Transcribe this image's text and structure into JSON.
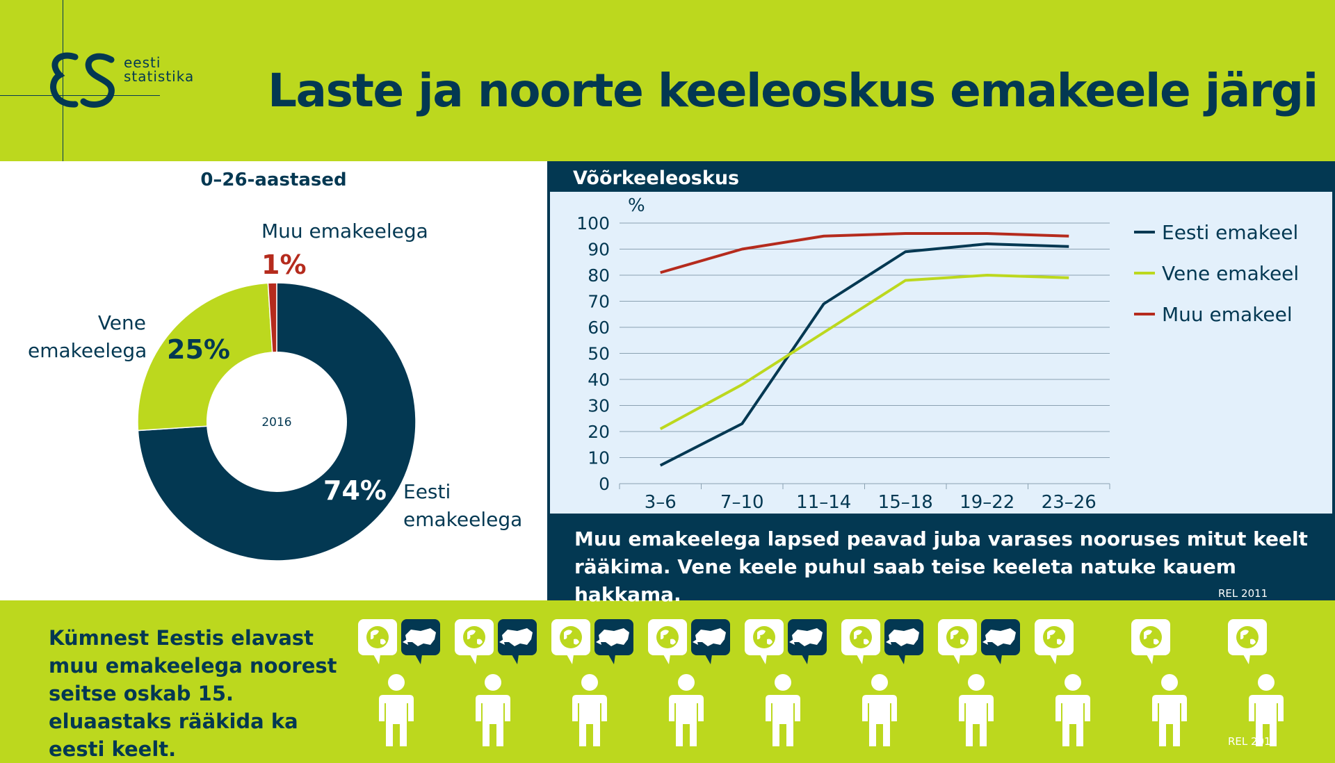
{
  "header": {
    "logo_mark": "ES",
    "logo_line1": "eesti",
    "logo_line2": "statistika",
    "title": "Laste ja noorte keeleoskus emakeele järgi"
  },
  "pie": {
    "heading": "0–26-aastased",
    "center_label": "2016",
    "slices": [
      {
        "label_lines": [
          "Eesti",
          "emakeelega"
        ],
        "pct": "74%",
        "value": 74,
        "color": "#033852"
      },
      {
        "label_lines": [
          "Vene",
          "emakeelega"
        ],
        "pct": "25%",
        "value": 25,
        "color": "#bcd81e"
      },
      {
        "label_lines": [
          "Muu emakeelega"
        ],
        "pct": "1%",
        "value": 1,
        "color": "#b52b1d"
      }
    ]
  },
  "chart_data": [
    {
      "type": "pie",
      "title": "0–26-aastased",
      "categories": [
        "Eesti emakeelega",
        "Vene emakeelega",
        "Muu emakeelega"
      ],
      "values": [
        74,
        25,
        1
      ],
      "center_label": "2016"
    },
    {
      "type": "line",
      "title": "Võõrkeeleoskus",
      "ylabel": "%",
      "categories": [
        "3–6",
        "7–10",
        "11–14",
        "15–18",
        "19–22",
        "23–26"
      ],
      "ylim": [
        0,
        100
      ],
      "yticks": [
        0,
        10,
        20,
        30,
        40,
        50,
        60,
        70,
        80,
        90,
        100
      ],
      "grid": true,
      "legend": "right",
      "series": [
        {
          "name": "Eesti emakeel",
          "color": "#033852",
          "values": [
            7,
            23,
            69,
            89,
            92,
            91
          ]
        },
        {
          "name": "Vene emakeel",
          "color": "#bcd81e",
          "values": [
            21,
            38,
            58,
            78,
            80,
            79
          ]
        },
        {
          "name": "Muu emakeel",
          "color": "#b52b1d",
          "values": [
            81,
            90,
            95,
            96,
            96,
            95
          ]
        }
      ]
    }
  ],
  "caption": "Muu emakeelega lapsed peavad juba varases nooruses mitut keelt rääkima. Vene keele puhul saab teise keeleta natuke kauem hakkama.",
  "source_top": "REL 2011",
  "bottom": {
    "text": "Kümnest Eestis elavast muu emakeelega noorest seitse oskab 15. eluaastaks rääkida ka eesti keelt.",
    "people_total": 10,
    "people_with_estonian": 7,
    "source": "REL 2011"
  },
  "icons": {
    "globe": "globe-icon",
    "estonia_map": "estonia-map-icon",
    "person": "person-icon"
  },
  "colors": {
    "navy": "#033852",
    "lime": "#bcd81e",
    "red": "#b52b1d",
    "plot_bg": "#e3f0fb"
  }
}
